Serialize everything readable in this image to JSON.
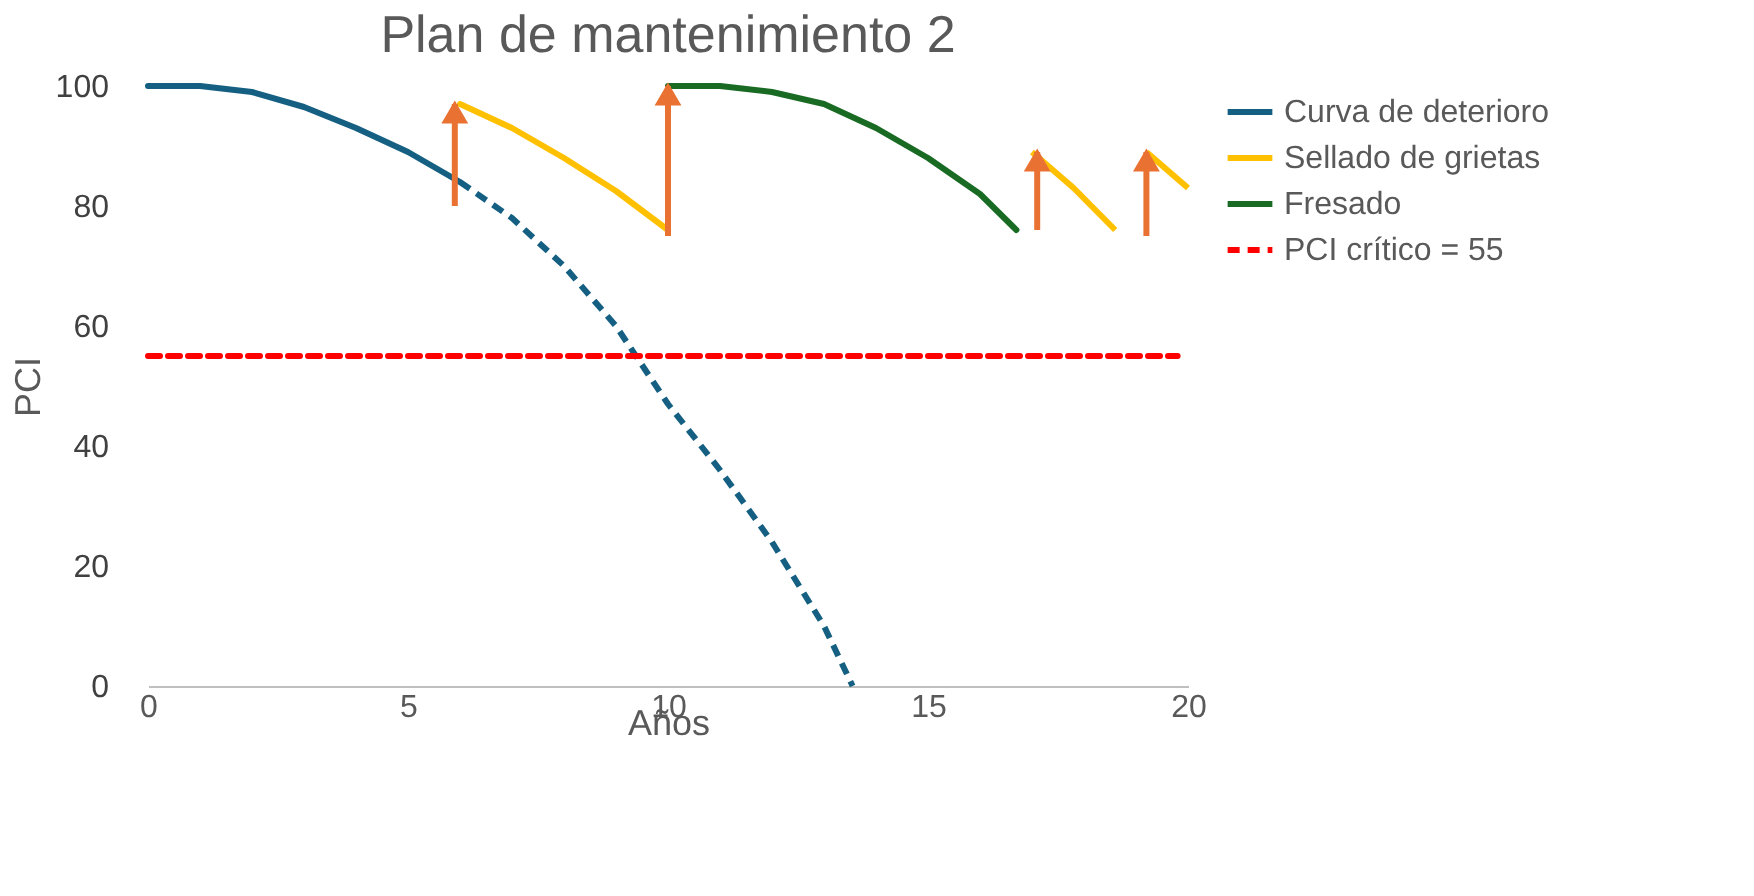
{
  "chart_data": {
    "type": "line",
    "title": "Plan de mantenimiento 2",
    "xlabel": "Años",
    "ylabel": "PCI",
    "xlim": [
      0,
      20
    ],
    "xticks": [
      0,
      5,
      10,
      15,
      20
    ],
    "ylim": [
      0,
      100
    ],
    "yticks": [
      0,
      20,
      40,
      60,
      80,
      100
    ],
    "grid": false,
    "legend": "right",
    "series": [
      {
        "name": "Curva de deterioro",
        "color": "#156082",
        "x": [
          0,
          1,
          2,
          3,
          4,
          5,
          6
        ],
        "values": [
          100,
          100,
          99,
          96.5,
          93,
          89,
          84
        ]
      },
      {
        "color": "#156082",
        "line_style": "dashed",
        "x": [
          6,
          7,
          8,
          9,
          10,
          11,
          12,
          13,
          13.55
        ],
        "values": [
          84,
          78,
          70,
          60,
          47,
          36,
          24,
          10,
          0
        ]
      },
      {
        "name": "Sellado de grietas",
        "color": "#ffc000",
        "x": [
          6,
          7,
          8,
          9,
          10
        ],
        "values": [
          97,
          93,
          88,
          82.5,
          76
        ]
      },
      {
        "color": "#ffc000",
        "x": [
          17,
          17.8,
          18.6
        ],
        "values": [
          89,
          83,
          76
        ]
      },
      {
        "color": "#ffc000",
        "x": [
          19.2,
          20
        ],
        "values": [
          89,
          83
        ]
      },
      {
        "name": "Fresado",
        "color": "#196b24",
        "x": [
          10,
          11,
          12,
          13,
          14,
          15,
          16,
          16.7
        ],
        "values": [
          100,
          100,
          99,
          97,
          93,
          88,
          82,
          76
        ]
      },
      {
        "name": "PCI crítico = 55",
        "color": "#ff0000",
        "line_style": "dashed",
        "x": [
          0,
          19.8
        ],
        "values": [
          55,
          55
        ]
      },
      {
        "color": "#e97132",
        "marker": "triangle",
        "x": [
          5.9,
          5.9
        ],
        "values": [
          80,
          97
        ]
      },
      {
        "color": "#e97132",
        "marker": "triangle",
        "x": [
          10,
          10
        ],
        "values": [
          75,
          100
        ]
      },
      {
        "color": "#e97132",
        "marker": "triangle",
        "x": [
          17.1,
          17.1
        ],
        "values": [
          76,
          89
        ]
      },
      {
        "color": "#e97132",
        "marker": "triangle",
        "x": [
          19.2,
          19.2
        ],
        "values": [
          75,
          89
        ]
      }
    ]
  }
}
